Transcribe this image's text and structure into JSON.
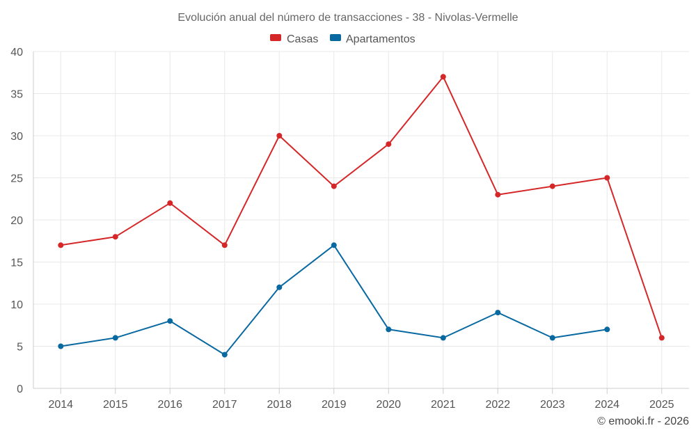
{
  "chart_data": {
    "type": "line",
    "title": "Evolución anual del número de transacciones - 38 - Nivolas-Vermelle",
    "categories": [
      "2014",
      "2015",
      "2016",
      "2017",
      "2018",
      "2019",
      "2020",
      "2021",
      "2022",
      "2023",
      "2024",
      "2025"
    ],
    "y_ticks": [
      "0",
      "5",
      "10",
      "15",
      "20",
      "25",
      "30",
      "35",
      "40"
    ],
    "ylim": [
      0,
      40
    ],
    "grid": true,
    "legend_position": "top-center",
    "series": [
      {
        "name": "Casas",
        "color": "#d62728",
        "values": [
          17,
          18,
          22,
          17,
          30,
          24,
          29,
          37,
          23,
          24,
          25,
          6
        ]
      },
      {
        "name": "Apartamentos",
        "color": "#0868a0",
        "values": [
          5,
          6,
          8,
          4,
          12,
          17,
          7,
          6,
          9,
          6,
          7,
          null
        ]
      }
    ],
    "credit": "© emooki.fr - 2026"
  }
}
